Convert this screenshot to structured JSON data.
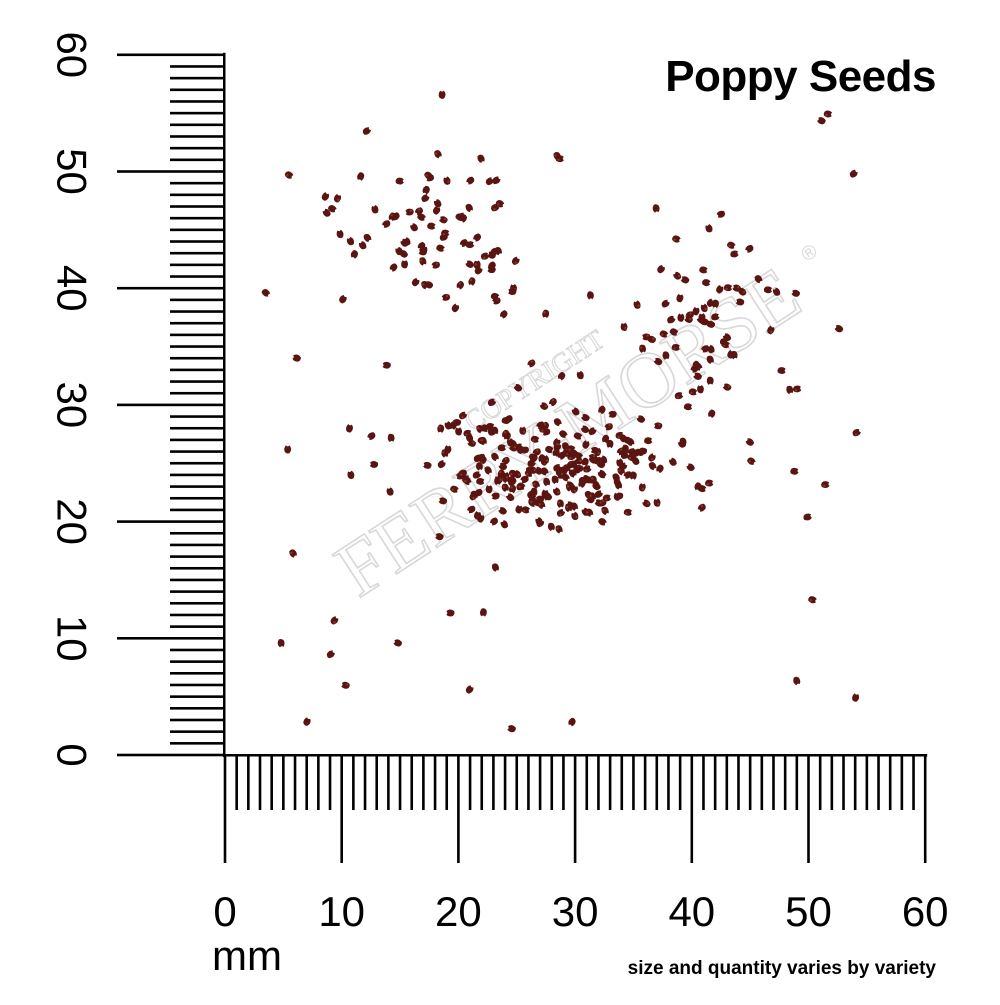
{
  "title": "Poppy Seeds",
  "unit_label": "mm",
  "footnote": "size and quantity varies by variety",
  "watermark": {
    "copyright": "COPYRIGHT",
    "brand": "FERRY-MORSE",
    "registered_mark": "®"
  },
  "ruler": {
    "min_mm": 0,
    "max_mm": 60,
    "major_step_mm": 10,
    "x_labels": [
      "0",
      "10",
      "20",
      "30",
      "40",
      "50",
      "60"
    ],
    "y_labels": [
      "0",
      "10",
      "20",
      "30",
      "40",
      "50",
      "60"
    ]
  },
  "colors": {
    "background": "#ffffff",
    "ink": "#000000",
    "seed": "#5a1512",
    "seed_highlight": "#8a3a22",
    "watermark": "#d8d8d8"
  },
  "seeds_visible_count_estimate": 420
}
